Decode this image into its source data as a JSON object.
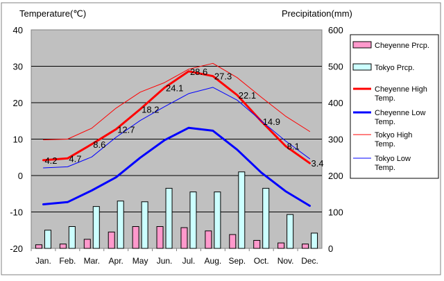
{
  "chart_data": {
    "type": "line",
    "left_axis_title": "Temperature(℃)",
    "right_axis_title": "Precipitation(mm)",
    "categories": [
      "Jan.",
      "Feb.",
      "Mar.",
      "Apr.",
      "May",
      "Jun.",
      "Jul.",
      "Aug.",
      "Sep.",
      "Oct.",
      "Nov.",
      "Dec."
    ],
    "y_left": {
      "min": -20,
      "max": 40,
      "ticks": [
        40,
        30,
        20,
        10,
        0,
        -10,
        -20
      ]
    },
    "y_right": {
      "min": 0,
      "max": 600,
      "ticks": [
        600,
        500,
        400,
        300,
        200,
        100,
        0
      ]
    },
    "grid": true,
    "legend_position": "right",
    "bar_series": [
      {
        "name": "Cheyenne Prcp.",
        "color": "#ff99cc",
        "values": [
          10,
          12,
          25,
          45,
          60,
          60,
          57,
          48,
          38,
          22,
          15,
          12
        ]
      },
      {
        "name": "Tokyo Prcp.",
        "color": "#ccffff",
        "values": [
          50,
          60,
          115,
          130,
          128,
          165,
          155,
          155,
          210,
          165,
          93,
          42
        ]
      }
    ],
    "line_series": [
      {
        "name": "Cheyenne High Temp.",
        "color": "#ff0000",
        "width": 3,
        "values": [
          4.2,
          4.7,
          8.6,
          12.7,
          18.2,
          24.1,
          28.6,
          27.3,
          22.1,
          14.9,
          8.1,
          3.4
        ],
        "labels": [
          "4.2",
          "4.7",
          "8.6",
          "12.7",
          "18.2",
          "24.1",
          "28.6",
          "27.3",
          "22.1",
          "14.9",
          "8.1",
          "3.4"
        ]
      },
      {
        "name": "Cheyenne Low Temp.",
        "color": "#0000ff",
        "width": 3,
        "values": [
          -7.9,
          -7.3,
          -4.1,
          -0.5,
          4.9,
          9.7,
          13.1,
          12.3,
          7.1,
          0.8,
          -4.3,
          -8.3
        ]
      },
      {
        "name": "Tokyo High Temp.",
        "color": "#ff0000",
        "width": 1,
        "values": [
          9.8,
          10.0,
          13.0,
          18.5,
          22.9,
          25.5,
          29.2,
          30.8,
          26.9,
          21.5,
          16.3,
          12.1
        ]
      },
      {
        "name": "Tokyo Low Temp.",
        "color": "#0000ff",
        "width": 1,
        "values": [
          2.1,
          2.4,
          5.1,
          10.5,
          15.1,
          18.9,
          22.5,
          24.2,
          20.7,
          15.0,
          9.5,
          4.6
        ]
      }
    ],
    "legend": [
      {
        "label": "Cheyenne Prcp.",
        "kind": "bar",
        "color": "#ff99cc"
      },
      {
        "label": "Tokyo Prcp.",
        "kind": "bar",
        "color": "#ccffff"
      },
      {
        "label": "Cheyenne High Temp.",
        "kind": "line",
        "color": "#ff0000",
        "width": 3
      },
      {
        "label": "Cheyenne Low Temp.",
        "kind": "line",
        "color": "#0000ff",
        "width": 3
      },
      {
        "label": "Tokyo High Temp.",
        "kind": "line",
        "color": "#ff0000",
        "width": 1
      },
      {
        "label": "Tokyo Low Temp.",
        "kind": "line",
        "color": "#0000ff",
        "width": 1
      }
    ]
  }
}
